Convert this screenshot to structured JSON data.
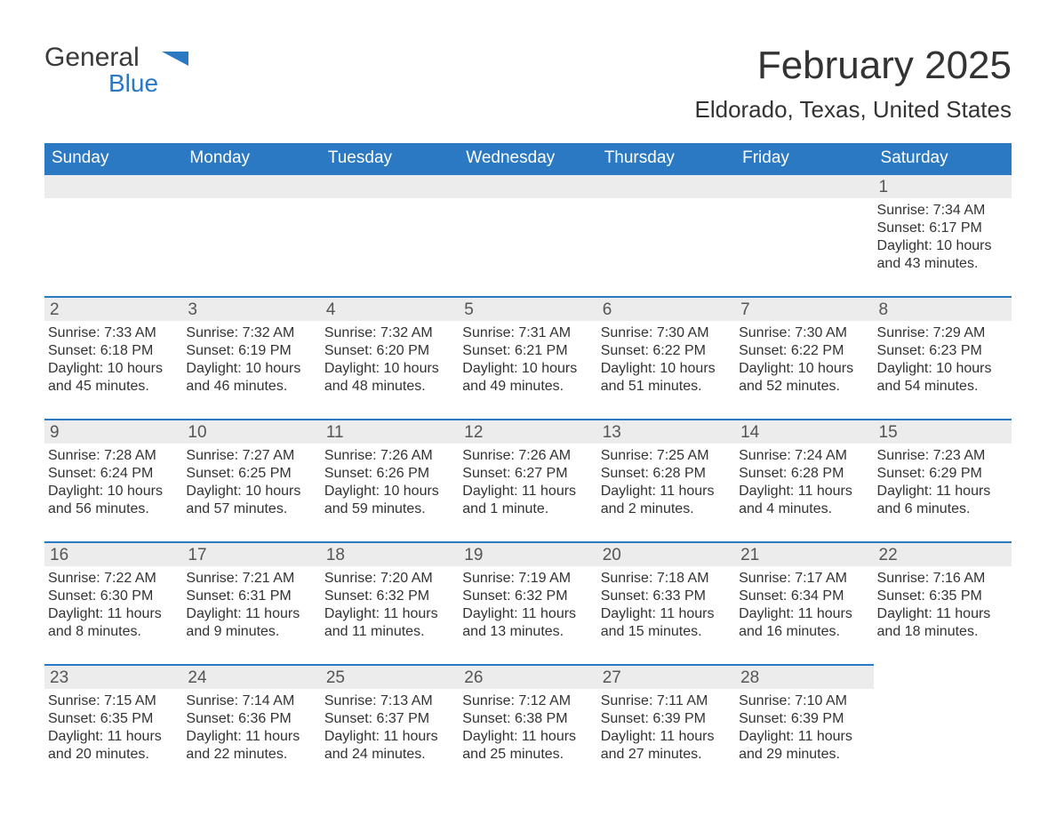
{
  "brand": {
    "part1": "General",
    "part2": "Blue",
    "icon_color": "#2b78c3"
  },
  "title": "February 2025",
  "location": "Eldorado, Texas, United States",
  "colors": {
    "header_bg": "#2b78c3",
    "header_text": "#ffffff",
    "daynum_bg": "#ececec",
    "daynum_border": "#2b78c3",
    "body_bg": "#ffffff",
    "text": "#333333"
  },
  "typography": {
    "title_fontsize": 44,
    "location_fontsize": 26,
    "header_fontsize": 19,
    "daynum_fontsize": 19,
    "body_fontsize": 16,
    "font_family": "Segoe UI"
  },
  "columns": [
    "Sunday",
    "Monday",
    "Tuesday",
    "Wednesday",
    "Thursday",
    "Friday",
    "Saturday"
  ],
  "weeks": [
    [
      null,
      null,
      null,
      null,
      null,
      null,
      {
        "d": "1",
        "sr": "Sunrise: 7:34 AM",
        "ss": "Sunset: 6:17 PM",
        "dl1": "Daylight: 10 hours",
        "dl2": "and 43 minutes."
      }
    ],
    [
      {
        "d": "2",
        "sr": "Sunrise: 7:33 AM",
        "ss": "Sunset: 6:18 PM",
        "dl1": "Daylight: 10 hours",
        "dl2": "and 45 minutes."
      },
      {
        "d": "3",
        "sr": "Sunrise: 7:32 AM",
        "ss": "Sunset: 6:19 PM",
        "dl1": "Daylight: 10 hours",
        "dl2": "and 46 minutes."
      },
      {
        "d": "4",
        "sr": "Sunrise: 7:32 AM",
        "ss": "Sunset: 6:20 PM",
        "dl1": "Daylight: 10 hours",
        "dl2": "and 48 minutes."
      },
      {
        "d": "5",
        "sr": "Sunrise: 7:31 AM",
        "ss": "Sunset: 6:21 PM",
        "dl1": "Daylight: 10 hours",
        "dl2": "and 49 minutes."
      },
      {
        "d": "6",
        "sr": "Sunrise: 7:30 AM",
        "ss": "Sunset: 6:22 PM",
        "dl1": "Daylight: 10 hours",
        "dl2": "and 51 minutes."
      },
      {
        "d": "7",
        "sr": "Sunrise: 7:30 AM",
        "ss": "Sunset: 6:22 PM",
        "dl1": "Daylight: 10 hours",
        "dl2": "and 52 minutes."
      },
      {
        "d": "8",
        "sr": "Sunrise: 7:29 AM",
        "ss": "Sunset: 6:23 PM",
        "dl1": "Daylight: 10 hours",
        "dl2": "and 54 minutes."
      }
    ],
    [
      {
        "d": "9",
        "sr": "Sunrise: 7:28 AM",
        "ss": "Sunset: 6:24 PM",
        "dl1": "Daylight: 10 hours",
        "dl2": "and 56 minutes."
      },
      {
        "d": "10",
        "sr": "Sunrise: 7:27 AM",
        "ss": "Sunset: 6:25 PM",
        "dl1": "Daylight: 10 hours",
        "dl2": "and 57 minutes."
      },
      {
        "d": "11",
        "sr": "Sunrise: 7:26 AM",
        "ss": "Sunset: 6:26 PM",
        "dl1": "Daylight: 10 hours",
        "dl2": "and 59 minutes."
      },
      {
        "d": "12",
        "sr": "Sunrise: 7:26 AM",
        "ss": "Sunset: 6:27 PM",
        "dl1": "Daylight: 11 hours",
        "dl2": "and 1 minute."
      },
      {
        "d": "13",
        "sr": "Sunrise: 7:25 AM",
        "ss": "Sunset: 6:28 PM",
        "dl1": "Daylight: 11 hours",
        "dl2": "and 2 minutes."
      },
      {
        "d": "14",
        "sr": "Sunrise: 7:24 AM",
        "ss": "Sunset: 6:28 PM",
        "dl1": "Daylight: 11 hours",
        "dl2": "and 4 minutes."
      },
      {
        "d": "15",
        "sr": "Sunrise: 7:23 AM",
        "ss": "Sunset: 6:29 PM",
        "dl1": "Daylight: 11 hours",
        "dl2": "and 6 minutes."
      }
    ],
    [
      {
        "d": "16",
        "sr": "Sunrise: 7:22 AM",
        "ss": "Sunset: 6:30 PM",
        "dl1": "Daylight: 11 hours",
        "dl2": "and 8 minutes."
      },
      {
        "d": "17",
        "sr": "Sunrise: 7:21 AM",
        "ss": "Sunset: 6:31 PM",
        "dl1": "Daylight: 11 hours",
        "dl2": "and 9 minutes."
      },
      {
        "d": "18",
        "sr": "Sunrise: 7:20 AM",
        "ss": "Sunset: 6:32 PM",
        "dl1": "Daylight: 11 hours",
        "dl2": "and 11 minutes."
      },
      {
        "d": "19",
        "sr": "Sunrise: 7:19 AM",
        "ss": "Sunset: 6:32 PM",
        "dl1": "Daylight: 11 hours",
        "dl2": "and 13 minutes."
      },
      {
        "d": "20",
        "sr": "Sunrise: 7:18 AM",
        "ss": "Sunset: 6:33 PM",
        "dl1": "Daylight: 11 hours",
        "dl2": "and 15 minutes."
      },
      {
        "d": "21",
        "sr": "Sunrise: 7:17 AM",
        "ss": "Sunset: 6:34 PM",
        "dl1": "Daylight: 11 hours",
        "dl2": "and 16 minutes."
      },
      {
        "d": "22",
        "sr": "Sunrise: 7:16 AM",
        "ss": "Sunset: 6:35 PM",
        "dl1": "Daylight: 11 hours",
        "dl2": "and 18 minutes."
      }
    ],
    [
      {
        "d": "23",
        "sr": "Sunrise: 7:15 AM",
        "ss": "Sunset: 6:35 PM",
        "dl1": "Daylight: 11 hours",
        "dl2": "and 20 minutes."
      },
      {
        "d": "24",
        "sr": "Sunrise: 7:14 AM",
        "ss": "Sunset: 6:36 PM",
        "dl1": "Daylight: 11 hours",
        "dl2": "and 22 minutes."
      },
      {
        "d": "25",
        "sr": "Sunrise: 7:13 AM",
        "ss": "Sunset: 6:37 PM",
        "dl1": "Daylight: 11 hours",
        "dl2": "and 24 minutes."
      },
      {
        "d": "26",
        "sr": "Sunrise: 7:12 AM",
        "ss": "Sunset: 6:38 PM",
        "dl1": "Daylight: 11 hours",
        "dl2": "and 25 minutes."
      },
      {
        "d": "27",
        "sr": "Sunrise: 7:11 AM",
        "ss": "Sunset: 6:39 PM",
        "dl1": "Daylight: 11 hours",
        "dl2": "and 27 minutes."
      },
      {
        "d": "28",
        "sr": "Sunrise: 7:10 AM",
        "ss": "Sunset: 6:39 PM",
        "dl1": "Daylight: 11 hours",
        "dl2": "and 29 minutes."
      },
      null
    ]
  ]
}
